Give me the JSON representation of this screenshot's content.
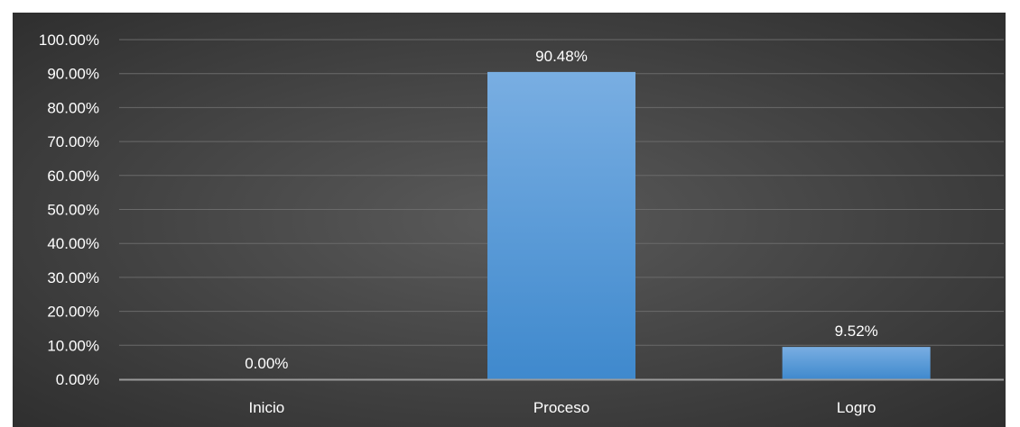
{
  "chart_data": {
    "type": "bar",
    "categories": [
      "Inicio",
      "Proceso",
      "Logro"
    ],
    "values": [
      0.0,
      90.48,
      9.52
    ],
    "data_labels": [
      "0.00%",
      "90.48%",
      "9.52%"
    ],
    "y_ticks": [
      "0.00%",
      "10.00%",
      "20.00%",
      "30.00%",
      "40.00%",
      "50.00%",
      "60.00%",
      "70.00%",
      "80.00%",
      "90.00%",
      "100.00%"
    ],
    "ylim": [
      0,
      100
    ],
    "grid": true,
    "legend": "none",
    "colors": {
      "bar_top": "#79aee2",
      "bar_bottom": "#3f89cd",
      "background_center": "#5a5a5a",
      "background_edge": "#2c2c2c",
      "gridline": "#6a6a6a",
      "axis": "#9a9a9a",
      "text": "#ffffff"
    }
  }
}
